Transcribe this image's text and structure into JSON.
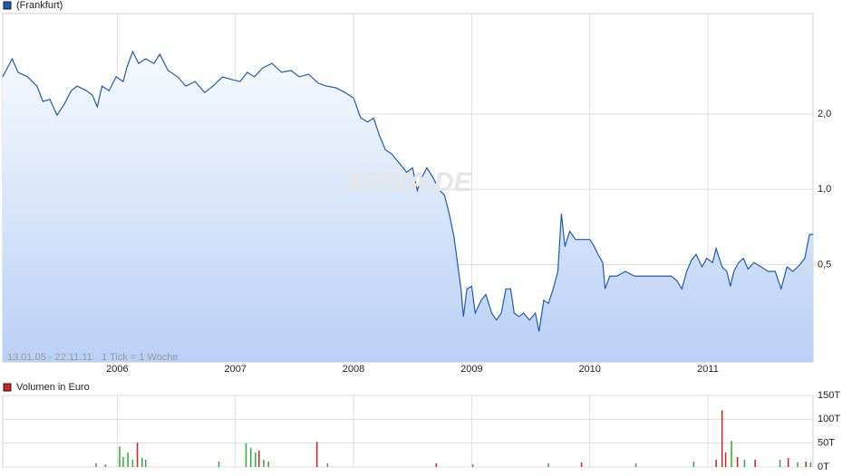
{
  "chart_data": [
    {
      "type": "line",
      "legend": "(Frankfurt)",
      "date_range": "13.01.05 - 22.11.11",
      "tick_note": "1 Tick = 1 Woche",
      "watermark": "ARIVA.DE",
      "log_scale": true,
      "grid": true,
      "xlim": [
        2005.03,
        2011.89
      ],
      "xticks": [
        2006,
        2007,
        2008,
        2009,
        2010,
        2011
      ],
      "ylim": [
        0.204,
        5.05
      ],
      "yticks": [
        {
          "value": 0.5,
          "label": "0,5"
        },
        {
          "value": 1,
          "label": "1,0"
        },
        {
          "value": 2,
          "label": "2,0"
        }
      ],
      "x": [
        2005.03,
        2005.11,
        2005.16,
        2005.24,
        2005.32,
        2005.37,
        2005.43,
        2005.49,
        2005.55,
        2005.61,
        2005.66,
        2005.74,
        2005.79,
        2005.83,
        2005.87,
        2005.93,
        2005.99,
        2006.05,
        2006.08,
        2006.13,
        2006.18,
        2006.24,
        2006.31,
        2006.36,
        2006.43,
        2006.51,
        2006.58,
        2006.66,
        2006.74,
        2006.81,
        2006.89,
        2006.97,
        2007.04,
        2007.1,
        2007.16,
        2007.23,
        2007.31,
        2007.39,
        2007.47,
        2007.54,
        2007.62,
        2007.7,
        2007.77,
        2007.85,
        2007.93,
        2008.0,
        2008.06,
        2008.12,
        2008.17,
        2008.22,
        2008.27,
        2008.32,
        2008.39,
        2008.45,
        2008.5,
        2008.54,
        2008.58,
        2008.62,
        2008.67,
        2008.73,
        2008.77,
        2008.81,
        2008.85,
        2008.88,
        2008.91,
        2008.93,
        2008.96,
        2009.0,
        2009.03,
        2009.08,
        2009.12,
        2009.17,
        2009.21,
        2009.25,
        2009.29,
        2009.33,
        2009.36,
        2009.4,
        2009.44,
        2009.49,
        2009.54,
        2009.57,
        2009.61,
        2009.65,
        2009.69,
        2009.73,
        2009.76,
        2009.79,
        2009.83,
        2009.88,
        2009.93,
        2010.0,
        2010.03,
        2010.07,
        2010.11,
        2010.13,
        2010.17,
        2010.23,
        2010.3,
        2010.38,
        2010.46,
        2010.53,
        2010.61,
        2010.69,
        2010.74,
        2010.78,
        2010.82,
        2010.86,
        2010.9,
        2010.95,
        2010.99,
        2011.04,
        2011.07,
        2011.12,
        2011.16,
        2011.19,
        2011.22,
        2011.26,
        2011.3,
        2011.34,
        2011.39,
        2011.45,
        2011.51,
        2011.57,
        2011.62,
        2011.67,
        2011.72,
        2011.78,
        2011.82,
        2011.86,
        2011.89
      ],
      "series": [
        {
          "name": "(Frankfurt)",
          "color": "#1f5bb0",
          "values": [
            2.82,
            3.33,
            2.94,
            2.82,
            2.59,
            2.25,
            2.29,
            1.98,
            2.19,
            2.48,
            2.59,
            2.48,
            2.38,
            2.14,
            2.59,
            2.48,
            2.82,
            2.7,
            3.06,
            3.56,
            3.19,
            3.33,
            3.19,
            3.47,
            2.99,
            2.82,
            2.59,
            2.7,
            2.44,
            2.59,
            2.82,
            2.75,
            2.7,
            2.94,
            2.82,
            3.06,
            3.19,
            2.94,
            2.99,
            2.82,
            2.89,
            2.66,
            2.59,
            2.55,
            2.44,
            2.32,
            1.93,
            1.86,
            1.93,
            1.64,
            1.44,
            1.39,
            1.27,
            1.17,
            1.22,
            0.99,
            1.12,
            1.22,
            1.12,
            0.99,
            0.95,
            0.8,
            0.65,
            0.51,
            0.4,
            0.31,
            0.4,
            0.41,
            0.32,
            0.36,
            0.38,
            0.32,
            0.3,
            0.32,
            0.4,
            0.4,
            0.32,
            0.31,
            0.32,
            0.3,
            0.32,
            0.27,
            0.36,
            0.35,
            0.4,
            0.47,
            0.8,
            0.59,
            0.68,
            0.63,
            0.63,
            0.63,
            0.6,
            0.55,
            0.51,
            0.4,
            0.45,
            0.45,
            0.47,
            0.45,
            0.45,
            0.45,
            0.45,
            0.45,
            0.43,
            0.4,
            0.47,
            0.52,
            0.55,
            0.49,
            0.53,
            0.51,
            0.58,
            0.49,
            0.47,
            0.41,
            0.47,
            0.51,
            0.53,
            0.48,
            0.51,
            0.49,
            0.47,
            0.47,
            0.4,
            0.49,
            0.47,
            0.5,
            0.53,
            0.66,
            0.66
          ]
        }
      ]
    },
    {
      "type": "bar",
      "grid": true,
      "xlim": [
        2005.03,
        2011.89
      ],
      "ylim": [
        0,
        150000
      ],
      "yticks": [
        {
          "value": 0,
          "label": "0T"
        },
        {
          "value": 50000,
          "label": "50T"
        },
        {
          "value": 100000,
          "label": "100T"
        },
        {
          "value": 150000,
          "label": "150T"
        }
      ],
      "x": [
        2005.82,
        2005.9,
        2006.02,
        2006.05,
        2006.09,
        2006.13,
        2006.17,
        2006.21,
        2006.24,
        2006.86,
        2007.09,
        2007.13,
        2007.17,
        2007.2,
        2007.24,
        2007.28,
        2007.69,
        2007.78,
        2008.7,
        2009.01,
        2009.65,
        2009.93,
        2010.39,
        2010.88,
        2011.07,
        2011.12,
        2011.15,
        2011.2,
        2011.25,
        2011.31,
        2011.4,
        2011.61,
        2011.68,
        2011.76,
        2011.83,
        2011.87
      ],
      "series": [
        {
          "name": "Volumen in Euro",
          "color": "#cc2222",
          "values": [
            7500,
            5700,
            43400,
            20800,
            30200,
            15100,
            50900,
            18900,
            15100,
            11300,
            49100,
            39600,
            30200,
            34000,
            15100,
            11300,
            52800,
            7500,
            7500,
            5700,
            7500,
            9400,
            7500,
            11300,
            15100,
            118900,
            30200,
            54700,
            20800,
            15100,
            15100,
            15100,
            18900,
            9400,
            11300,
            9400
          ]
        }
      ],
      "bar_colors": [
        "#3a3",
        "#3a3",
        "#3a3",
        "#3a3",
        "#3a3",
        "#3a3",
        "#cc2222",
        "#3a3",
        "#3a3",
        "#3a3",
        "#3a3",
        "#3a3",
        "#3a3",
        "#cc2222",
        "#3a3",
        "#3a3",
        "#cc2222",
        "#3a3",
        "#cc2222",
        "#3a3",
        "#3a3",
        "#cc2222",
        "#3a3",
        "#3a3",
        "#cc2222",
        "#cc2222",
        "#cc2222",
        "#3a3",
        "#cc2222",
        "#3a3",
        "#cc2222",
        "#3a3",
        "#cc2222",
        "#3a3",
        "#cc2222",
        "#3a3"
      ]
    }
  ]
}
